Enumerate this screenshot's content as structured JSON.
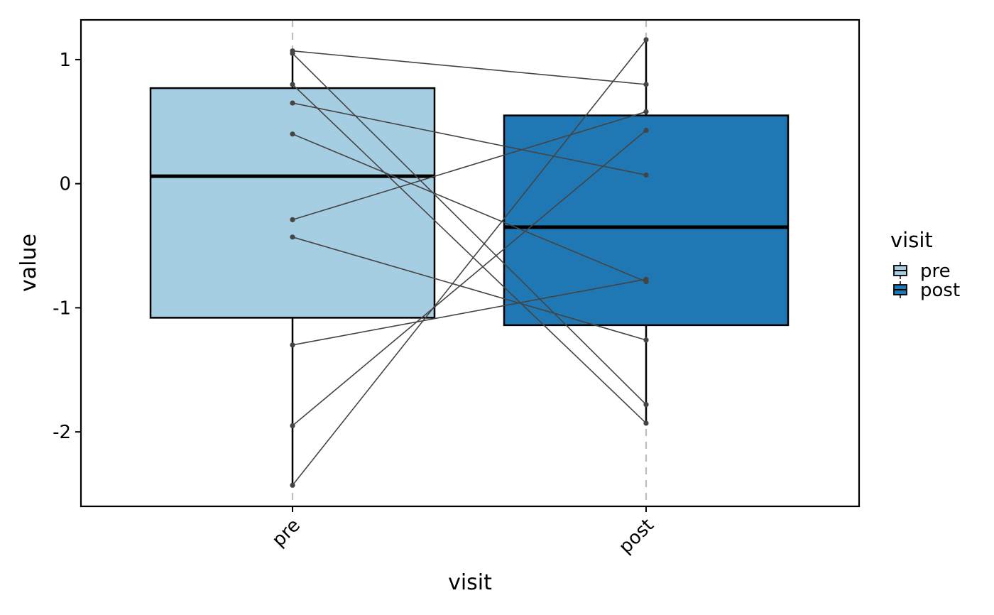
{
  "chart_data": {
    "type": "box",
    "categories": [
      "pre",
      "post"
    ],
    "colors": {
      "pre": "#A6CEE3",
      "post": "#1F78B4"
    },
    "xlabel": "visit",
    "ylabel": "value",
    "ylim": [
      -2.6,
      1.32
    ],
    "yticks": [
      1,
      0,
      -1,
      -2
    ],
    "ytick_labels": [
      "1",
      "0",
      "-1",
      "-2"
    ],
    "boxes": [
      {
        "name": "pre",
        "min": -2.43,
        "q1": -1.08,
        "median": 0.06,
        "q3": 0.77,
        "max": 1.07
      },
      {
        "name": "post",
        "min": -1.93,
        "q1": -1.14,
        "median": -0.35,
        "q3": 0.55,
        "max": 1.16
      }
    ],
    "pairs": [
      {
        "pre": 1.07,
        "post": 0.8
      },
      {
        "pre": 1.05,
        "post": -1.78
      },
      {
        "pre": 0.8,
        "post": -1.93
      },
      {
        "pre": 0.65,
        "post": 0.07
      },
      {
        "pre": 0.4,
        "post": -0.79
      },
      {
        "pre": -0.29,
        "post": 0.58
      },
      {
        "pre": -0.43,
        "post": -1.26
      },
      {
        "pre": -1.3,
        "post": -0.77
      },
      {
        "pre": -1.95,
        "post": 0.43
      },
      {
        "pre": -2.43,
        "post": 1.16
      }
    ],
    "legend": {
      "title": "visit",
      "entries": [
        "pre",
        "post"
      ],
      "placement": "right"
    },
    "grid": "major x only (dashed)",
    "line_color": "#444444"
  }
}
